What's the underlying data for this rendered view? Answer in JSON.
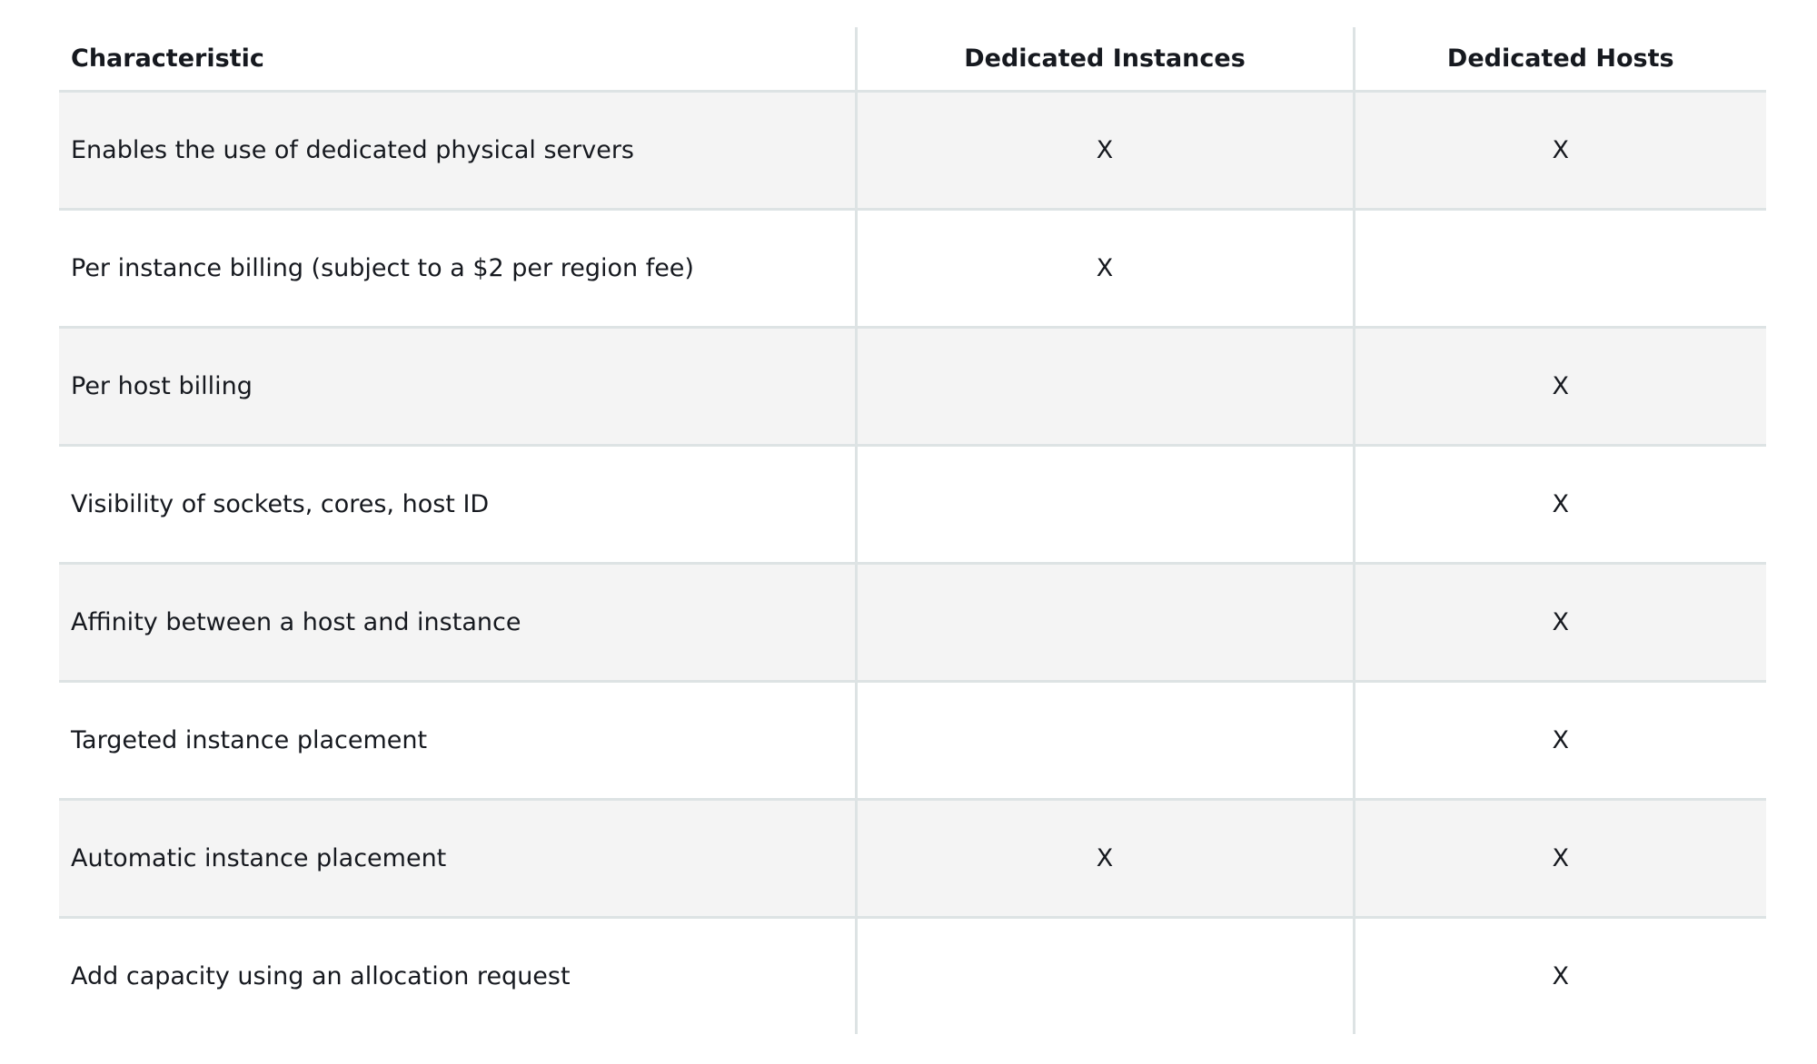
{
  "table": {
    "headers": [
      "Characteristic",
      "Dedicated Instances",
      "Dedicated Hosts"
    ],
    "rows": [
      {
        "characteristic": "Enables the use of dedicated physical servers",
        "dedicated_instances": "X",
        "dedicated_hosts": "X"
      },
      {
        "characteristic": "Per instance billing (subject to a $2 per region fee)",
        "dedicated_instances": "X",
        "dedicated_hosts": ""
      },
      {
        "characteristic": "Per host billing",
        "dedicated_instances": "",
        "dedicated_hosts": "X"
      },
      {
        "characteristic": "Visibility of sockets, cores, host ID",
        "dedicated_instances": "",
        "dedicated_hosts": "X"
      },
      {
        "characteristic": "Affinity between a host and instance",
        "dedicated_instances": "",
        "dedicated_hosts": "X"
      },
      {
        "characteristic": "Targeted instance placement",
        "dedicated_instances": "",
        "dedicated_hosts": "X"
      },
      {
        "characteristic": "Automatic instance placement",
        "dedicated_instances": "X",
        "dedicated_hosts": "X"
      },
      {
        "characteristic": "Add capacity using an allocation request",
        "dedicated_instances": "",
        "dedicated_hosts": "X"
      }
    ]
  }
}
